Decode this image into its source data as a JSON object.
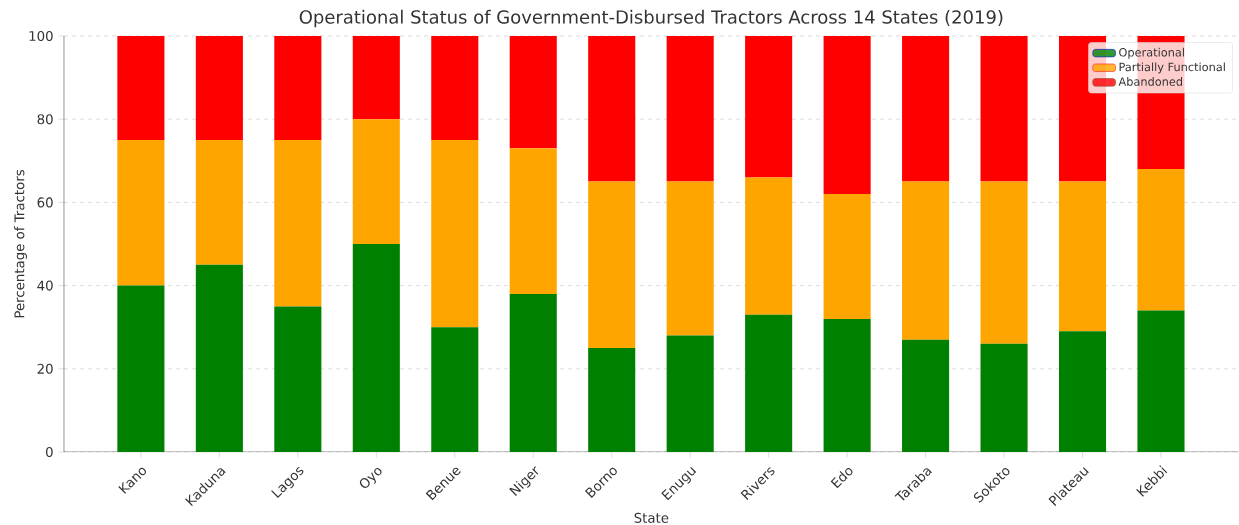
{
  "chart_data": {
    "type": "bar",
    "stacked": true,
    "title": "Operational Status of Government-Disbursed Tractors Across 14 States (2019)",
    "xlabel": "State",
    "ylabel": "Percentage of Tractors",
    "categories": [
      "Kano",
      "Kaduna",
      "Lagos",
      "Oyo",
      "Benue",
      "Niger",
      "Borno",
      "Enugu",
      "Rivers",
      "Edo",
      "Taraba",
      "Sokoto",
      "Plateau",
      "Kebbi"
    ],
    "series": [
      {
        "name": "Operational",
        "color": "#008000",
        "values": [
          40,
          45,
          35,
          50,
          30,
          38,
          25,
          28,
          33,
          32,
          27,
          26,
          29,
          34
        ]
      },
      {
        "name": "Partially Functional",
        "color": "#ffa500",
        "values": [
          35,
          30,
          40,
          30,
          45,
          35,
          40,
          37,
          33,
          30,
          38,
          39,
          36,
          34
        ]
      },
      {
        "name": "Abandoned",
        "color": "#ff0000",
        "values": [
          25,
          25,
          25,
          20,
          25,
          27,
          35,
          35,
          34,
          38,
          35,
          35,
          35,
          32
        ]
      }
    ],
    "ylim": [
      0,
      100
    ],
    "yticks": [
      0,
      20,
      40,
      60,
      80,
      100
    ],
    "grid": true,
    "legend": "top right"
  }
}
